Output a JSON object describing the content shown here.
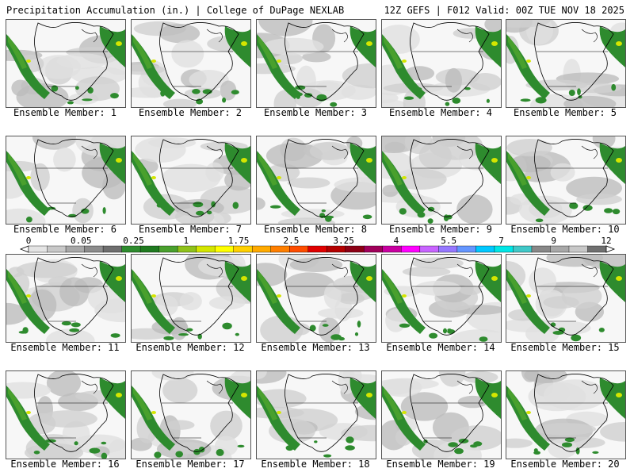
{
  "header": {
    "left_title": "Precipitation Accumulation (in.) | College of DuPage NEXLAB",
    "right_title": "12Z GEFS | F012 Valid: 00Z TUE NOV 18 2025"
  },
  "member_label_prefix": "Ensemble Member: ",
  "members": [
    {
      "label": "Ensemble Member: 1"
    },
    {
      "label": "Ensemble Member: 2"
    },
    {
      "label": "Ensemble Member: 3"
    },
    {
      "label": "Ensemble Member: 4"
    },
    {
      "label": "Ensemble Member: 5"
    },
    {
      "label": "Ensemble Member: 6"
    },
    {
      "label": "Ensemble Member: 7"
    },
    {
      "label": "Ensemble Member: 8"
    },
    {
      "label": "Ensemble Member: 9"
    },
    {
      "label": "Ensemble Member: 10"
    },
    {
      "label": "Ensemble Member: 11"
    },
    {
      "label": "Ensemble Member: 12"
    },
    {
      "label": "Ensemble Member: 13"
    },
    {
      "label": "Ensemble Member: 14"
    },
    {
      "label": "Ensemble Member: 15"
    },
    {
      "label": "Ensemble Member: 16"
    },
    {
      "label": "Ensemble Member: 17"
    },
    {
      "label": "Ensemble Member: 18"
    },
    {
      "label": "Ensemble Member: 19"
    },
    {
      "label": "Ensemble Member: 20"
    }
  ],
  "legend": {
    "tick_labels": [
      "0",
      "0.05",
      "0.25",
      "1",
      "1.75",
      "2.5",
      "3.25",
      "4",
      "5.5",
      "7",
      "9",
      "12"
    ],
    "colors": [
      "#e4e4e4",
      "#c8c8c8",
      "#a8a8a8",
      "#8c8c8c",
      "#6e6e6e",
      "#2e8b2e",
      "#1f7a1f",
      "#49a02d",
      "#8fc21a",
      "#d4e600",
      "#ffff00",
      "#ffd000",
      "#ffaa00",
      "#ff7f00",
      "#ff4d00",
      "#e00000",
      "#b40000",
      "#8c0014",
      "#a0005a",
      "#c800a0",
      "#ff00ff",
      "#c864ff",
      "#9678ff",
      "#6496ff",
      "#00c8ff",
      "#00e6e6",
      "#40c8c8",
      "#888888",
      "#a8a8a8",
      "#c8c8c8",
      "#707070"
    ]
  }
}
